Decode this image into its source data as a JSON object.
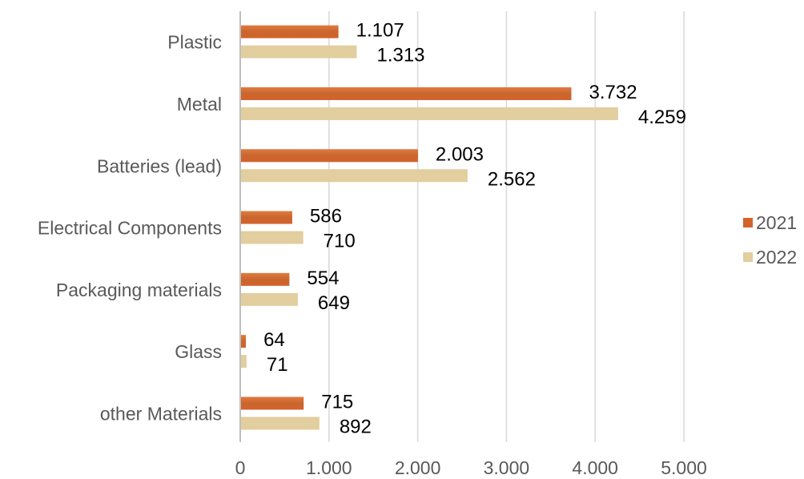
{
  "chart_data": {
    "type": "bar",
    "orientation": "horizontal",
    "categories": [
      "Plastic",
      "Metal",
      "Batteries (lead)",
      "Electrical Components",
      "Packaging materials",
      "Glass",
      "other Materials"
    ],
    "series": [
      {
        "name": "2021",
        "color": "#D4622B",
        "values": [
          1107,
          3732,
          2003,
          586,
          554,
          64,
          715
        ],
        "labels": [
          "1.107",
          "3.732",
          "2.003",
          "586",
          "554",
          "64",
          "715"
        ]
      },
      {
        "name": "2022",
        "color": "#E2CE9E",
        "values": [
          1313,
          4259,
          2562,
          710,
          649,
          71,
          892
        ],
        "labels": [
          "1.313",
          "4.259",
          "2.562",
          "710",
          "649",
          "71",
          "892"
        ]
      }
    ],
    "xlim": [
      0,
      5000
    ],
    "xticks": [
      0,
      1000,
      2000,
      3000,
      4000,
      5000
    ],
    "xtick_labels": [
      "0",
      "1.000",
      "2.000",
      "3.000",
      "4.000",
      "5.000"
    ],
    "grid": "vertical",
    "legend": "right",
    "title": "",
    "xlabel": "",
    "ylabel": ""
  }
}
